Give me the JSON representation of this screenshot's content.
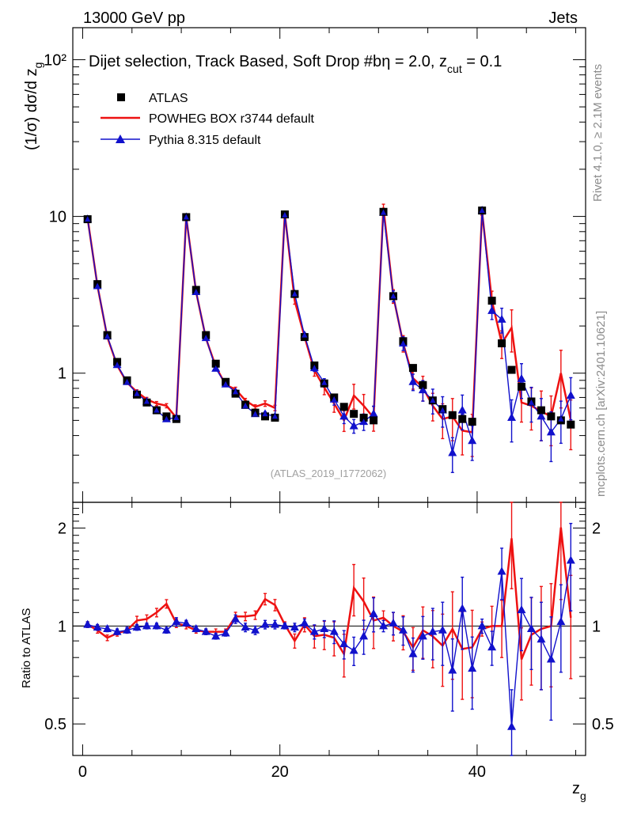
{
  "header": {
    "left": "13000 GeV pp",
    "right": "Jets"
  },
  "side_labels": {
    "rivet": "Rivet 4.1.0, ≥ 2.1M events",
    "mcplots": "mcplots.cern.ch [arXiv:2401.10621]"
  },
  "watermark": "(ATLAS_2019_I1772062)",
  "chart_data": {
    "type": "scatter",
    "title": "Dijet selection, Track Based, Soft Drop #b",
    "title_suffix": "η = 2.0, z",
    "title_sub": "cut",
    "title_end": " = 0.1",
    "ylabel": "(1/σ) dσ/d z",
    "ylabel_sub": "g",
    "xlabel": "z",
    "xlabel_sub": "g",
    "ratio_ylabel": "Ratio to ATLAS",
    "xlim": [
      -1,
      51
    ],
    "ylim": [
      0.15,
      160
    ],
    "ratio_ylim": [
      0.4,
      2.4
    ],
    "x_ticks": [
      0,
      20,
      40
    ],
    "y_ticks": [
      {
        "v": 1,
        "label": "1"
      },
      {
        "v": 10,
        "label": "10"
      },
      {
        "v": 100,
        "label": "10²"
      }
    ],
    "ratio_ticks": [
      {
        "v": 0.5,
        "label": "0.5"
      },
      {
        "v": 1,
        "label": "1"
      },
      {
        "v": 2,
        "label": "2"
      }
    ],
    "x": [
      0.5,
      1.5,
      2.5,
      3.5,
      4.5,
      5.5,
      6.5,
      7.5,
      8.5,
      9.5,
      10.5,
      11.5,
      12.5,
      13.5,
      14.5,
      15.5,
      16.5,
      17.5,
      18.5,
      19.5,
      20.5,
      21.5,
      22.5,
      23.5,
      24.5,
      25.5,
      26.5,
      27.5,
      28.5,
      29.5,
      30.5,
      31.5,
      32.5,
      33.5,
      34.5,
      35.5,
      36.5,
      37.5,
      38.5,
      39.5,
      40.5,
      41.5,
      42.5,
      43.5,
      44.5,
      45.5,
      46.5,
      47.5,
      48.5,
      49.5
    ],
    "series": [
      {
        "name": "ATLAS",
        "color": "#000000",
        "marker": "square",
        "values": [
          9.6,
          3.7,
          1.75,
          1.18,
          0.9,
          0.73,
          0.65,
          0.58,
          0.53,
          0.51,
          9.9,
          3.4,
          1.75,
          1.15,
          0.88,
          0.74,
          0.63,
          0.56,
          0.53,
          0.52,
          10.3,
          3.2,
          1.7,
          1.12,
          0.86,
          0.7,
          0.61,
          0.55,
          0.52,
          0.5,
          10.7,
          3.1,
          1.6,
          1.08,
          0.84,
          0.67,
          0.59,
          0.54,
          0.51,
          0.49,
          10.9,
          2.9,
          1.55,
          1.05,
          0.82,
          0.66,
          0.58,
          0.53,
          0.5,
          0.47
        ]
      },
      {
        "name": "POWHEG BOX r3744 default",
        "color": "#ee1111",
        "marker": "line",
        "values": [
          9.7,
          3.6,
          1.7,
          1.12,
          0.87,
          0.76,
          0.68,
          0.64,
          0.62,
          0.52,
          9.9,
          3.3,
          1.67,
          1.1,
          0.84,
          0.79,
          0.67,
          0.61,
          0.64,
          0.6,
          10.4,
          2.9,
          1.71,
          1.04,
          0.81,
          0.64,
          0.5,
          0.72,
          0.62,
          0.52,
          11.4,
          3.1,
          1.55,
          0.93,
          0.81,
          0.62,
          0.51,
          0.53,
          0.43,
          0.42,
          10.7,
          2.9,
          1.55,
          1.95,
          0.65,
          0.62,
          0.57,
          0.53,
          1.0,
          0.5
        ],
        "ratio": [
          1.01,
          0.97,
          0.92,
          0.95,
          0.97,
          1.04,
          1.05,
          1.1,
          1.17,
          1.02,
          1.0,
          0.97,
          0.96,
          0.96,
          0.96,
          1.07,
          1.07,
          1.08,
          1.21,
          1.16,
          1.01,
          0.9,
          1.01,
          0.93,
          0.94,
          0.92,
          0.82,
          1.31,
          1.19,
          1.04,
          1.06,
          1.0,
          0.96,
          0.86,
          0.97,
          0.93,
          0.87,
          0.98,
          0.85,
          0.86,
          0.98,
          1.0,
          1.0,
          1.86,
          0.79,
          0.94,
          0.98,
          1.0,
          2.01,
          1.06
        ],
        "err": [
          0.02,
          0.02,
          0.02,
          0.02,
          0.02,
          0.03,
          0.03,
          0.03,
          0.03,
          0.03,
          0.02,
          0.02,
          0.02,
          0.02,
          0.02,
          0.03,
          0.03,
          0.03,
          0.04,
          0.04,
          0.02,
          0.05,
          0.05,
          0.08,
          0.1,
          0.12,
          0.15,
          0.18,
          0.18,
          0.18,
          0.05,
          0.1,
          0.12,
          0.15,
          0.18,
          0.2,
          0.25,
          0.3,
          0.3,
          0.3,
          0.05,
          0.15,
          0.2,
          0.3,
          0.25,
          0.3,
          0.35,
          0.35,
          0.4,
          0.35
        ]
      },
      {
        "name": "Pythia 8.315 default",
        "color": "#1111cc",
        "marker": "triangle",
        "values": [
          9.6,
          3.6,
          1.72,
          1.13,
          0.88,
          0.74,
          0.66,
          0.58,
          0.51,
          0.52,
          9.9,
          3.3,
          1.68,
          1.07,
          0.85,
          0.76,
          0.62,
          0.55,
          0.55,
          0.53,
          10.2,
          3.2,
          1.75,
          1.08,
          0.87,
          0.68,
          0.53,
          0.46,
          0.49,
          0.55,
          10.6,
          3.1,
          1.55,
          0.88,
          0.78,
          0.67,
          0.58,
          0.31,
          0.58,
          0.37,
          10.9,
          2.5,
          2.2,
          0.52,
          0.92,
          0.65,
          0.53,
          0.42,
          0.51,
          0.72
        ],
        "ratio": [
          1.01,
          0.99,
          0.98,
          0.96,
          0.97,
          0.99,
          1.0,
          1.0,
          0.97,
          1.03,
          1.02,
          0.98,
          0.96,
          0.93,
          0.95,
          1.05,
          0.99,
          0.97,
          1.01,
          1.01,
          1.0,
          0.99,
          1.02,
          0.96,
          0.98,
          0.96,
          0.88,
          0.84,
          0.93,
          1.09,
          1.0,
          1.02,
          0.97,
          0.82,
          0.93,
          0.96,
          0.97,
          0.73,
          1.13,
          0.74,
          1.0,
          0.86,
          1.47,
          0.49,
          1.12,
          0.98,
          0.91,
          0.79,
          1.03,
          1.59
        ],
        "err": [
          0.02,
          0.02,
          0.02,
          0.02,
          0.02,
          0.02,
          0.02,
          0.02,
          0.02,
          0.03,
          0.02,
          0.02,
          0.02,
          0.02,
          0.02,
          0.03,
          0.03,
          0.03,
          0.03,
          0.03,
          0.02,
          0.03,
          0.03,
          0.05,
          0.06,
          0.08,
          0.1,
          0.1,
          0.12,
          0.12,
          0.04,
          0.08,
          0.1,
          0.12,
          0.15,
          0.18,
          0.22,
          0.25,
          0.25,
          0.25,
          0.05,
          0.12,
          0.18,
          0.3,
          0.25,
          0.25,
          0.3,
          0.35,
          0.3,
          0.3
        ]
      }
    ]
  }
}
